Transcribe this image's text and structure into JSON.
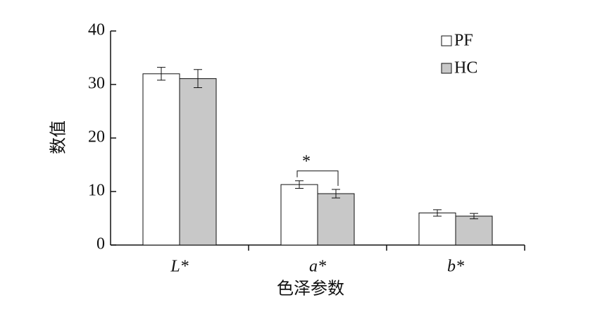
{
  "chart_data": {
    "type": "bar",
    "x_label": "色泽参数",
    "y_label": "数值",
    "categories": [
      "L*",
      "a*",
      "b*"
    ],
    "series": [
      {
        "name": "PF",
        "color": "#ffffff",
        "values": [
          32.0,
          11.3,
          6.0
        ],
        "errors": [
          1.2,
          0.7,
          0.6
        ]
      },
      {
        "name": "HC",
        "color": "#c8c8c8",
        "values": [
          31.1,
          9.6,
          5.4
        ],
        "errors": [
          1.7,
          0.8,
          0.5
        ]
      }
    ],
    "annotation": {
      "text": "*",
      "category": "a*"
    },
    "ylim": [
      0,
      40
    ],
    "yticks": [
      0,
      10,
      20,
      30,
      40
    ],
    "legend": "top-right",
    "grid": false
  }
}
